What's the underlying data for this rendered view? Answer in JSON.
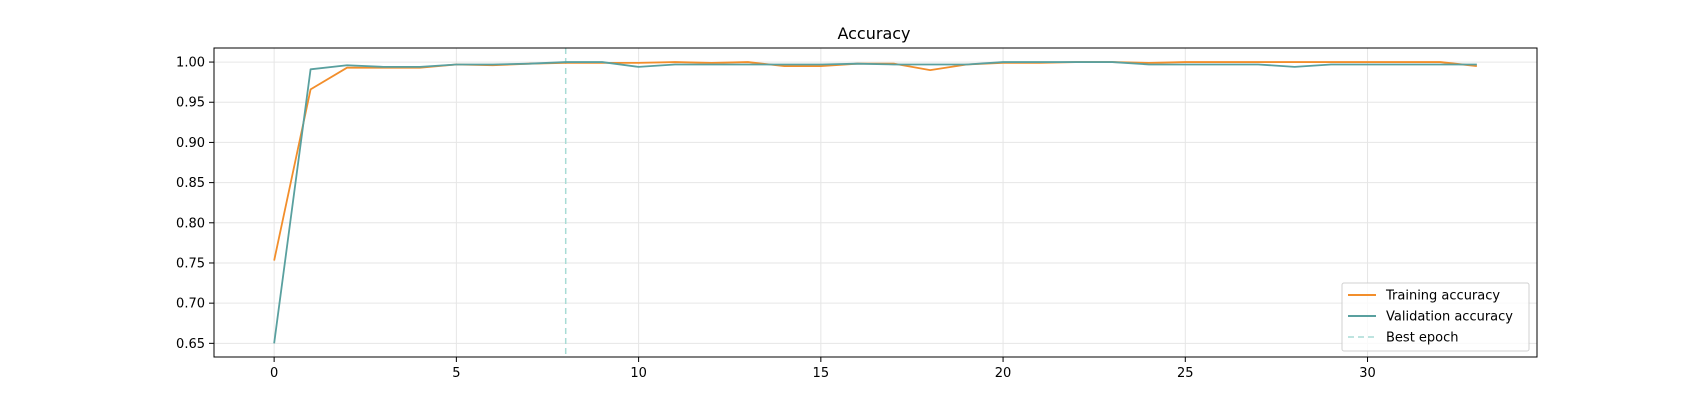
{
  "chart_data": {
    "type": "line",
    "title": "Accuracy",
    "xlabel": "",
    "ylabel": "",
    "xlim": [
      -1.65,
      34.65
    ],
    "ylim": [
      0.633,
      1.0175
    ],
    "xticks": [
      0,
      5,
      10,
      15,
      20,
      25,
      30
    ],
    "xtick_labels": [
      "0",
      "5",
      "10",
      "15",
      "20",
      "25",
      "30"
    ],
    "yticks": [
      0.65,
      0.7,
      0.75,
      0.8,
      0.85,
      0.9,
      0.95,
      1.0
    ],
    "ytick_labels": [
      "0.65",
      "0.70",
      "0.75",
      "0.80",
      "0.85",
      "0.90",
      "0.95",
      "1.00"
    ],
    "grid": true,
    "legend_position": "lower-right",
    "x": [
      0,
      1,
      2,
      3,
      4,
      5,
      6,
      7,
      8,
      9,
      10,
      11,
      12,
      13,
      14,
      15,
      16,
      17,
      18,
      19,
      20,
      21,
      22,
      23,
      24,
      25,
      26,
      27,
      28,
      29,
      30,
      31,
      32,
      33
    ],
    "series": [
      {
        "name": "Training accuracy",
        "color": "#F28E2B",
        "values": [
          0.753,
          0.966,
          0.993,
          0.993,
          0.993,
          0.997,
          0.996,
          0.998,
          0.999,
          0.999,
          0.999,
          1.0,
          0.999,
          1.0,
          0.995,
          0.995,
          0.998,
          0.998,
          0.99,
          0.997,
          0.999,
          0.999,
          1.0,
          1.0,
          0.999,
          1.0,
          1.0,
          1.0,
          1.0,
          1.0,
          1.0,
          1.0,
          1.0,
          0.995
        ]
      },
      {
        "name": "Validation accuracy",
        "color": "#59A09F",
        "values": [
          0.65,
          0.991,
          0.996,
          0.994,
          0.994,
          0.997,
          0.997,
          0.998,
          1.0,
          1.0,
          0.994,
          0.997,
          0.997,
          0.997,
          0.997,
          0.997,
          0.998,
          0.997,
          0.997,
          0.997,
          1.0,
          1.0,
          1.0,
          1.0,
          0.997,
          0.997,
          0.997,
          0.997,
          0.994,
          0.997,
          0.997,
          0.997,
          0.997,
          0.997
        ]
      }
    ],
    "best_epoch": {
      "name": "Best epoch",
      "x": 8,
      "color": "#A8DCD5"
    }
  }
}
